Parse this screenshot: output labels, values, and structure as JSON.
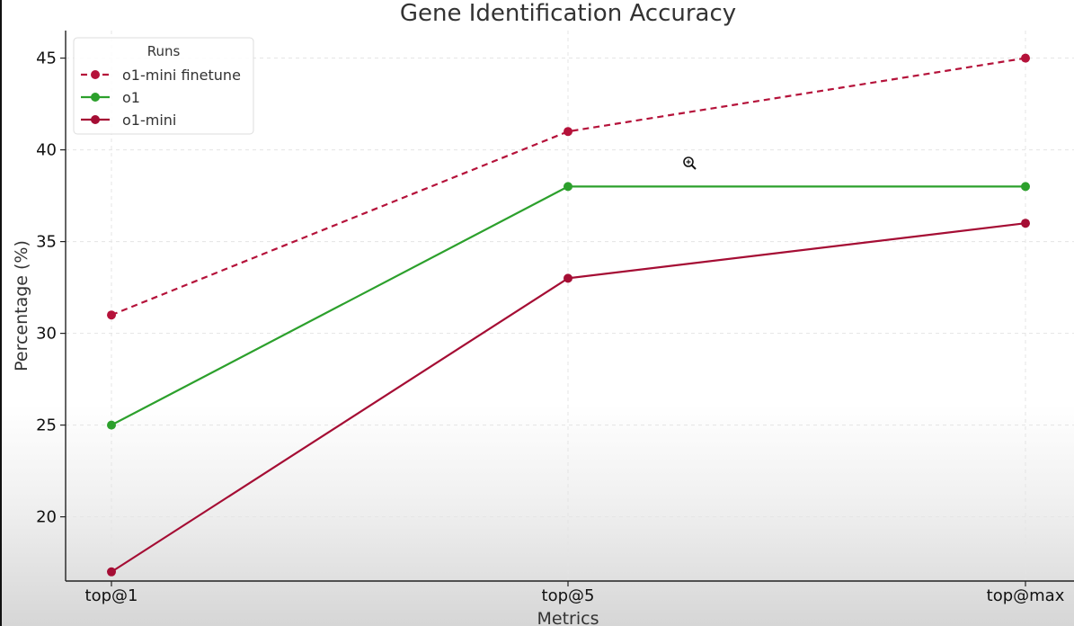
{
  "chart_data": {
    "type": "line",
    "title": "Gene Identification Accuracy",
    "xlabel": "Metrics",
    "ylabel": "Percentage (%)",
    "categories": [
      "top@1",
      "top@5",
      "top@max"
    ],
    "ylim": [
      16.5,
      46.5
    ],
    "yticks": [
      20,
      25,
      30,
      35,
      40,
      45
    ],
    "grid": true,
    "legend": {
      "title": "Runs",
      "position": "top-left"
    },
    "series": [
      {
        "name": "o1-mini finetune",
        "values": [
          31,
          41,
          45
        ],
        "color": "#b5123a",
        "style": "dashed"
      },
      {
        "name": "o1",
        "values": [
          25,
          38,
          38
        ],
        "color": "#2ca02c",
        "style": "solid"
      },
      {
        "name": "o1-mini",
        "values": [
          17,
          33,
          36
        ],
        "color": "#a50d34",
        "style": "solid"
      }
    ]
  },
  "cursor_icon": "zoom-in-icon"
}
